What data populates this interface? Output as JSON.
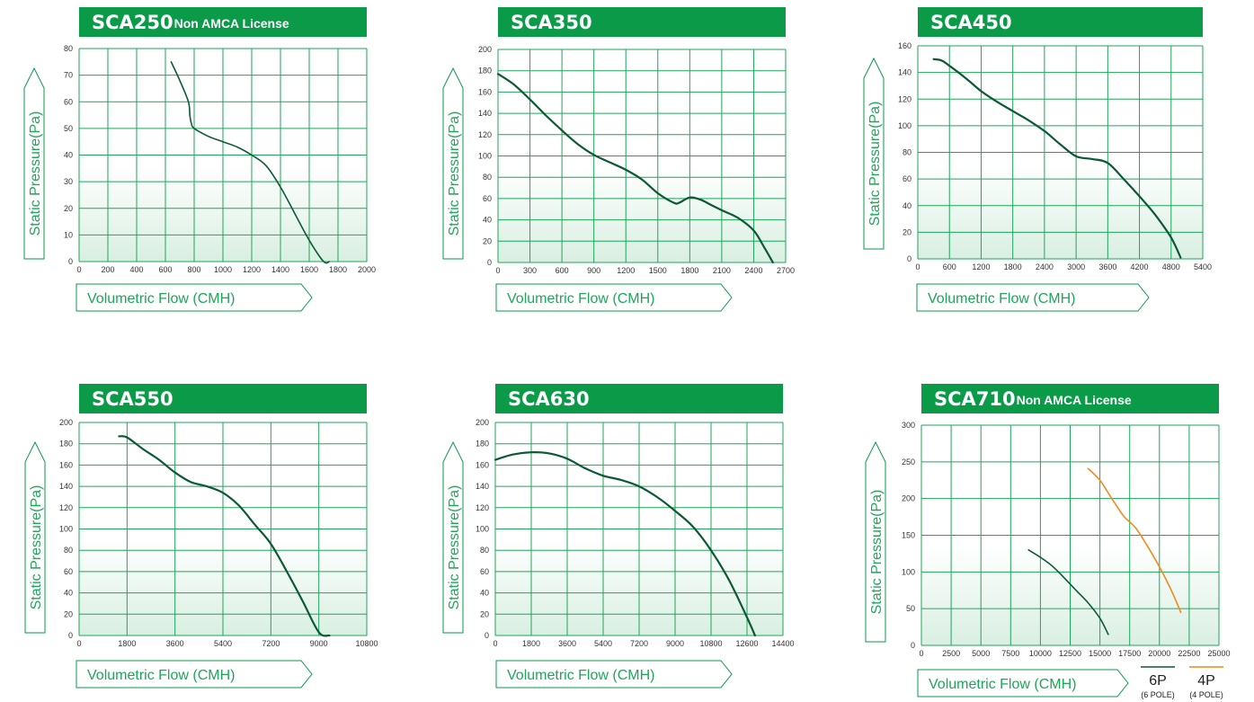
{
  "colors": {
    "brand_green": "#0a9a48",
    "grid_green": "#1ea659",
    "curve_dark_green": "#0b5a32",
    "curve_orange": "#ef8a1d",
    "axis_label_green": "#1ea659",
    "plot_fill_top": "#ffffff",
    "plot_fill_bottom": "#dff2e7"
  },
  "chart_data": [
    {
      "type": "line",
      "title": "SCA250",
      "subtitle": "Non AMCA License",
      "xlabel": "Volumetric Flow (CMH)",
      "ylabel": "Static Pressure(Pa)",
      "xlim": [
        0,
        2000
      ],
      "ylim": [
        0,
        80
      ],
      "xticks": [
        0,
        200,
        400,
        600,
        800,
        1000,
        1200,
        1400,
        1600,
        1800,
        2000
      ],
      "yticks": [
        0,
        10,
        20,
        30,
        40,
        50,
        60,
        70,
        80
      ],
      "grid": true,
      "series": [
        {
          "color": "#0b5a32",
          "x": [
            640,
            700,
            760,
            770,
            780,
            800,
            900,
            1000,
            1100,
            1200,
            1300,
            1400,
            1500,
            1600,
            1700,
            1740
          ],
          "y": [
            75,
            68,
            60,
            55,
            52,
            50,
            47,
            45,
            43,
            40,
            36,
            28,
            18,
            8,
            0,
            0
          ]
        }
      ]
    },
    {
      "type": "line",
      "title": "SCA350",
      "subtitle": "",
      "xlabel": "Volumetric Flow (CMH)",
      "ylabel": "Static Pressure(Pa)",
      "xlim": [
        0,
        2700
      ],
      "ylim": [
        0,
        200
      ],
      "xticks": [
        0,
        300,
        600,
        900,
        1200,
        1500,
        1800,
        2100,
        2400,
        2700
      ],
      "yticks": [
        0,
        20,
        40,
        60,
        80,
        100,
        120,
        140,
        160,
        180,
        200
      ],
      "grid": true,
      "series": [
        {
          "color": "#0b5a32",
          "x": [
            0,
            150,
            300,
            450,
            600,
            750,
            900,
            1050,
            1200,
            1350,
            1500,
            1650,
            1700,
            1800,
            1900,
            2000,
            2100,
            2250,
            2400,
            2500,
            2580
          ],
          "y": [
            177,
            167,
            153,
            138,
            124,
            111,
            101,
            94,
            87,
            78,
            65,
            56,
            56,
            61,
            59,
            54,
            49,
            42,
            30,
            14,
            0
          ]
        }
      ]
    },
    {
      "type": "line",
      "title": "SCA450",
      "subtitle": "",
      "xlabel": "Volumetric Flow (CMH)",
      "ylabel": "Static Pressure(Pa)",
      "xlim": [
        0,
        5400
      ],
      "ylim": [
        0,
        160
      ],
      "xticks": [
        0,
        600,
        1200,
        1800,
        2400,
        3000,
        3600,
        4200,
        4800,
        5400
      ],
      "yticks": [
        0,
        20,
        40,
        60,
        80,
        100,
        120,
        140,
        160
      ],
      "grid": true,
      "series": [
        {
          "color": "#0b5a32",
          "x": [
            300,
            450,
            600,
            900,
            1200,
            1500,
            1800,
            2100,
            2400,
            2700,
            3000,
            3300,
            3600,
            3900,
            4200,
            4500,
            4800,
            4980
          ],
          "y": [
            150,
            149,
            145,
            136,
            126,
            118,
            111,
            104,
            96,
            86,
            77,
            75,
            72,
            60,
            47,
            33,
            16,
            1
          ]
        }
      ]
    },
    {
      "type": "line",
      "title": "SCA550",
      "subtitle": "",
      "xlabel": "Volumetric Flow (CMH)",
      "ylabel": "Static Pressure(Pa)",
      "xlim": [
        0,
        10800
      ],
      "ylim": [
        0,
        200
      ],
      "xticks": [
        0,
        1800,
        3600,
        5400,
        7200,
        9000,
        10800
      ],
      "yticks": [
        0,
        20,
        40,
        60,
        80,
        100,
        120,
        140,
        160,
        180,
        200
      ],
      "grid": true,
      "series": [
        {
          "color": "#0b5a32",
          "x": [
            1500,
            1800,
            2400,
            3000,
            3600,
            4200,
            4800,
            5400,
            6000,
            6600,
            7200,
            7800,
            8400,
            9000,
            9400
          ],
          "y": [
            187,
            186,
            175,
            165,
            153,
            144,
            140,
            134,
            122,
            104,
            86,
            60,
            32,
            3,
            0
          ]
        }
      ]
    },
    {
      "type": "line",
      "title": "SCA630",
      "subtitle": "",
      "xlabel": "Volumetric Flow (CMH)",
      "ylabel": "Static Pressure(Pa)",
      "xlim": [
        0,
        14400
      ],
      "ylim": [
        0,
        200
      ],
      "xticks": [
        0,
        1800,
        3600,
        5400,
        7200,
        9000,
        10800,
        12600,
        14400
      ],
      "yticks": [
        0,
        20,
        40,
        60,
        80,
        100,
        120,
        140,
        160,
        180,
        200
      ],
      "grid": true,
      "series": [
        {
          "color": "#0b5a32",
          "x": [
            0,
            900,
            1800,
            2700,
            3600,
            4500,
            5400,
            6300,
            7200,
            8100,
            9000,
            9900,
            10800,
            11700,
            12600,
            13000
          ],
          "y": [
            165,
            170,
            172,
            171,
            166,
            157,
            150,
            146,
            140,
            130,
            117,
            102,
            80,
            52,
            17,
            0
          ]
        }
      ]
    },
    {
      "type": "line",
      "title": "SCA710",
      "subtitle": "Non AMCA License",
      "xlabel": "Volumetric Flow (CMH)",
      "ylabel": "Static Pressure(Pa)",
      "xlim": [
        0,
        25000
      ],
      "ylim": [
        0,
        300
      ],
      "xticks": [
        0,
        2500,
        5000,
        7500,
        10000,
        12500,
        15000,
        17500,
        20000,
        22500,
        25000
      ],
      "yticks": [
        0,
        50,
        100,
        150,
        200,
        250,
        300
      ],
      "grid": true,
      "legend": [
        {
          "label": "6P",
          "sublabel": "(6 POLE)",
          "color": "#0b5a32"
        },
        {
          "label": "4P",
          "sublabel": "(4 POLE)",
          "color": "#ef8a1d"
        }
      ],
      "series": [
        {
          "name": "6P",
          "color": "#0b5a32",
          "x": [
            9000,
            10000,
            11000,
            12000,
            13000,
            14000,
            15000,
            15700
          ],
          "y": [
            130,
            120,
            108,
            92,
            75,
            58,
            37,
            15
          ]
        },
        {
          "name": "4P",
          "color": "#ef8a1d",
          "x": [
            14000,
            15000,
            16000,
            17000,
            18000,
            19000,
            20000,
            21000,
            21800
          ],
          "y": [
            241,
            225,
            200,
            176,
            160,
            135,
            107,
            75,
            45
          ]
        }
      ]
    }
  ]
}
